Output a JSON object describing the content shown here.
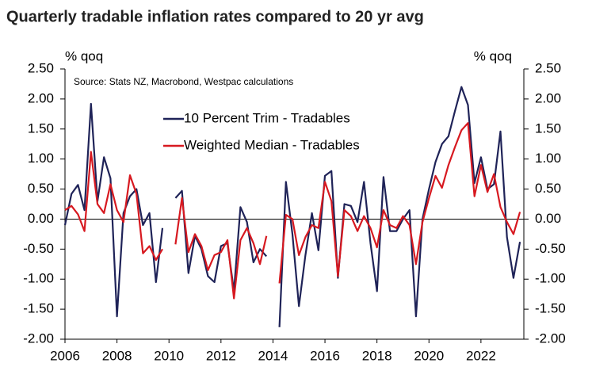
{
  "chart_data": {
    "type": "line",
    "title": "Quarterly tradable inflation rates compared to 20 yr avg",
    "source": "Source: Stats NZ, Macrobond, Westpac calculations",
    "ylabel": "% qoq",
    "y2label": "% qoq",
    "x": [
      2006,
      2006.25,
      2006.5,
      2006.75,
      2007,
      2007.25,
      2007.5,
      2007.75,
      2008,
      2008.25,
      2008.5,
      2008.75,
      2009,
      2009.25,
      2009.5,
      2009.75,
      2010,
      2010.25,
      2010.5,
      2010.75,
      2011,
      2011.25,
      2011.5,
      2011.75,
      2012,
      2012.25,
      2012.5,
      2012.75,
      2013,
      2013.25,
      2013.5,
      2013.75,
      2014,
      2014.25,
      2014.5,
      2014.75,
      2015,
      2015.25,
      2015.5,
      2015.75,
      2016,
      2016.25,
      2016.5,
      2016.75,
      2017,
      2017.25,
      2017.5,
      2017.75,
      2018,
      2018.25,
      2018.5,
      2018.75,
      2019,
      2019.25,
      2019.5,
      2019.75,
      2020,
      2020.25,
      2020.5,
      2020.75,
      2021,
      2021.25,
      2021.5,
      2021.75,
      2022,
      2022.25,
      2022.5,
      2022.75,
      2023,
      2023.25,
      2023.5
    ],
    "series": [
      {
        "name": "10 Percent Trim - Tradables",
        "color": "#1f2358",
        "values": [
          -0.1,
          0.42,
          0.57,
          0.15,
          1.92,
          0.3,
          1.03,
          0.68,
          -1.62,
          0.1,
          0.38,
          0.5,
          -0.1,
          0.1,
          -1.05,
          -0.15,
          null,
          0.35,
          0.47,
          -0.9,
          -0.28,
          -0.5,
          -0.95,
          -1.05,
          -0.45,
          -0.4,
          -1.2,
          0.2,
          -0.05,
          -0.72,
          -0.5,
          -0.62,
          null,
          -1.8,
          0.62,
          -0.25,
          -1.45,
          -0.6,
          0.1,
          -0.52,
          0.72,
          0.8,
          -0.98,
          0.25,
          0.22,
          -0.05,
          0.62,
          -0.4,
          -1.2,
          0.7,
          -0.2,
          -0.2,
          0.0,
          0.15,
          -1.62,
          0.0,
          0.5,
          0.95,
          1.25,
          1.38,
          1.8,
          2.2,
          1.9,
          0.6,
          1.03,
          0.5,
          0.58,
          1.46,
          -0.3,
          -0.98,
          -0.38
        ]
      },
      {
        "name": "Weighted Median - Tradables",
        "color": "#d71920",
        "values": [
          0.15,
          0.22,
          0.08,
          -0.2,
          1.12,
          0.25,
          0.1,
          0.58,
          0.15,
          -0.05,
          0.73,
          0.42,
          -0.57,
          -0.45,
          -0.68,
          -0.5,
          null,
          -0.42,
          0.35,
          -0.55,
          -0.25,
          -0.45,
          -0.85,
          -0.6,
          -0.55,
          -0.35,
          -1.32,
          -0.35,
          -0.15,
          -0.4,
          -0.75,
          -0.28,
          null,
          -1.07,
          0.07,
          0.0,
          -0.6,
          -0.3,
          -0.1,
          -0.15,
          0.62,
          0.3,
          -0.95,
          0.15,
          0.05,
          -0.2,
          0.05,
          -0.15,
          -0.47,
          0.15,
          -0.1,
          -0.15,
          0.05,
          -0.1,
          -0.75,
          -0.05,
          0.35,
          0.72,
          0.52,
          0.9,
          1.2,
          1.48,
          1.6,
          0.38,
          0.9,
          0.45,
          0.75,
          0.2,
          -0.05,
          -0.25,
          0.12
        ]
      }
    ],
    "xlim": [
      2006,
      2023.65
    ],
    "xticks": [
      2006,
      2008,
      2010,
      2012,
      2014,
      2016,
      2018,
      2020,
      2022
    ],
    "ylim": [
      -2,
      2.5
    ],
    "yticks": [
      {
        "value": -2,
        "label": "-2.00"
      },
      {
        "value": -1.5,
        "label": "-1.50"
      },
      {
        "value": -1,
        "label": "-1.00"
      },
      {
        "value": -0.5,
        "label": "-0.50"
      },
      {
        "value": 0,
        "label": "0.00"
      },
      {
        "value": 0.5,
        "label": "0.50"
      },
      {
        "value": 1,
        "label": "1.00"
      },
      {
        "value": 1.5,
        "label": "1.50"
      },
      {
        "value": 2,
        "label": "2.00"
      },
      {
        "value": 2.5,
        "label": "2.50"
      }
    ],
    "y2lim": [
      -2,
      2.5
    ],
    "y2ticks": [
      {
        "value": -2,
        "label": "-2.00"
      },
      {
        "value": -1.5,
        "label": "-1.50"
      },
      {
        "value": -1,
        "label": "-1.00"
      },
      {
        "value": -0.5,
        "label": "-0.50"
      },
      {
        "value": 0,
        "label": "0.00"
      },
      {
        "value": 0.5,
        "label": "0.50"
      },
      {
        "value": 1,
        "label": "1.00"
      },
      {
        "value": 1.5,
        "label": "1.50"
      },
      {
        "value": 2,
        "label": "2.00"
      },
      {
        "value": 2.5,
        "label": "2.50"
      }
    ],
    "grid": false
  }
}
